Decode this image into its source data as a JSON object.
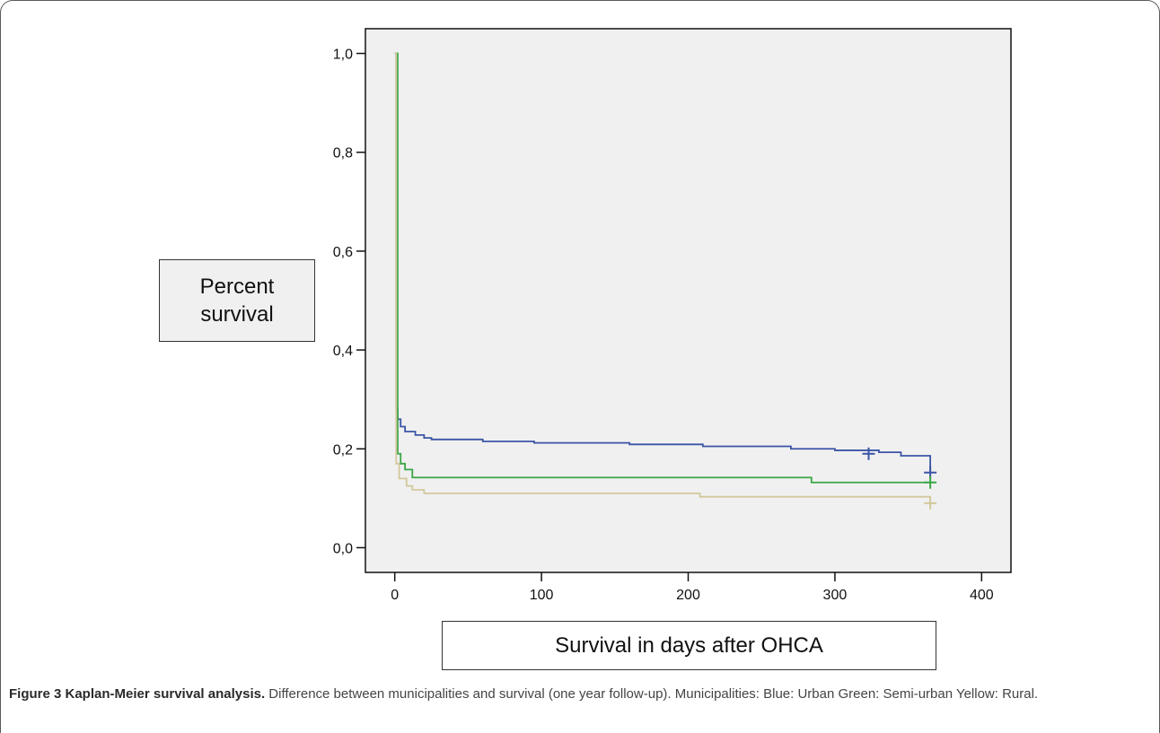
{
  "chart_data": {
    "type": "line",
    "title": "",
    "xlabel": "Survival in days after OHCA",
    "ylabel": "Percent survival",
    "xlim": [
      -20,
      420
    ],
    "ylim": [
      -0.05,
      1.05
    ],
    "x_ticks": [
      0,
      100,
      200,
      300,
      400
    ],
    "x_tick_labels": [
      "0",
      "100",
      "200",
      "300",
      "400"
    ],
    "y_ticks": [
      0.0,
      0.2,
      0.4,
      0.6,
      0.8,
      1.0
    ],
    "y_tick_labels": [
      "0,0",
      "0,2",
      "0,4",
      "0,6",
      "0,8",
      "1,0"
    ],
    "grid": false,
    "background": "#f0f0f0",
    "step": true,
    "series": [
      {
        "name": "Blue: Urban",
        "color": "#3b55a6",
        "points": [
          [
            0,
            1.0
          ],
          [
            1,
            0.28
          ],
          [
            2,
            0.26
          ],
          [
            4,
            0.245
          ],
          [
            7,
            0.235
          ],
          [
            14,
            0.228
          ],
          [
            20,
            0.222
          ],
          [
            25,
            0.219
          ],
          [
            60,
            0.215
          ],
          [
            95,
            0.212
          ],
          [
            160,
            0.209
          ],
          [
            210,
            0.205
          ],
          [
            270,
            0.2
          ],
          [
            300,
            0.197
          ],
          [
            330,
            0.193
          ],
          [
            345,
            0.186
          ],
          [
            365,
            0.152
          ]
        ],
        "censored": [
          [
            323,
            0.19
          ],
          [
            365,
            0.152
          ]
        ]
      },
      {
        "name": "Green: Semi-urban",
        "color": "#3aa646",
        "points": [
          [
            0,
            1.0
          ],
          [
            2,
            0.19
          ],
          [
            4,
            0.17
          ],
          [
            7,
            0.158
          ],
          [
            12,
            0.142
          ],
          [
            283,
            0.142
          ],
          [
            284,
            0.132
          ],
          [
            365,
            0.132
          ]
        ],
        "censored": [
          [
            365,
            0.132
          ]
        ]
      },
      {
        "name": "Yellow: Rural",
        "color": "#d2c89b",
        "points": [
          [
            0,
            1.0
          ],
          [
            1,
            0.17
          ],
          [
            3,
            0.14
          ],
          [
            8,
            0.125
          ],
          [
            12,
            0.117
          ],
          [
            20,
            0.11
          ],
          [
            207,
            0.11
          ],
          [
            208,
            0.103
          ],
          [
            365,
            0.103
          ],
          [
            365,
            0.09
          ]
        ],
        "censored": [
          [
            365,
            0.09
          ]
        ]
      }
    ]
  },
  "caption": {
    "title": "Figure 3 Kaplan-Meier survival analysis.",
    "text": "Difference between municipalities and survival (one year follow-up). Municipalities: Blue: Urban Green: Semi-urban Yellow: Rural."
  }
}
